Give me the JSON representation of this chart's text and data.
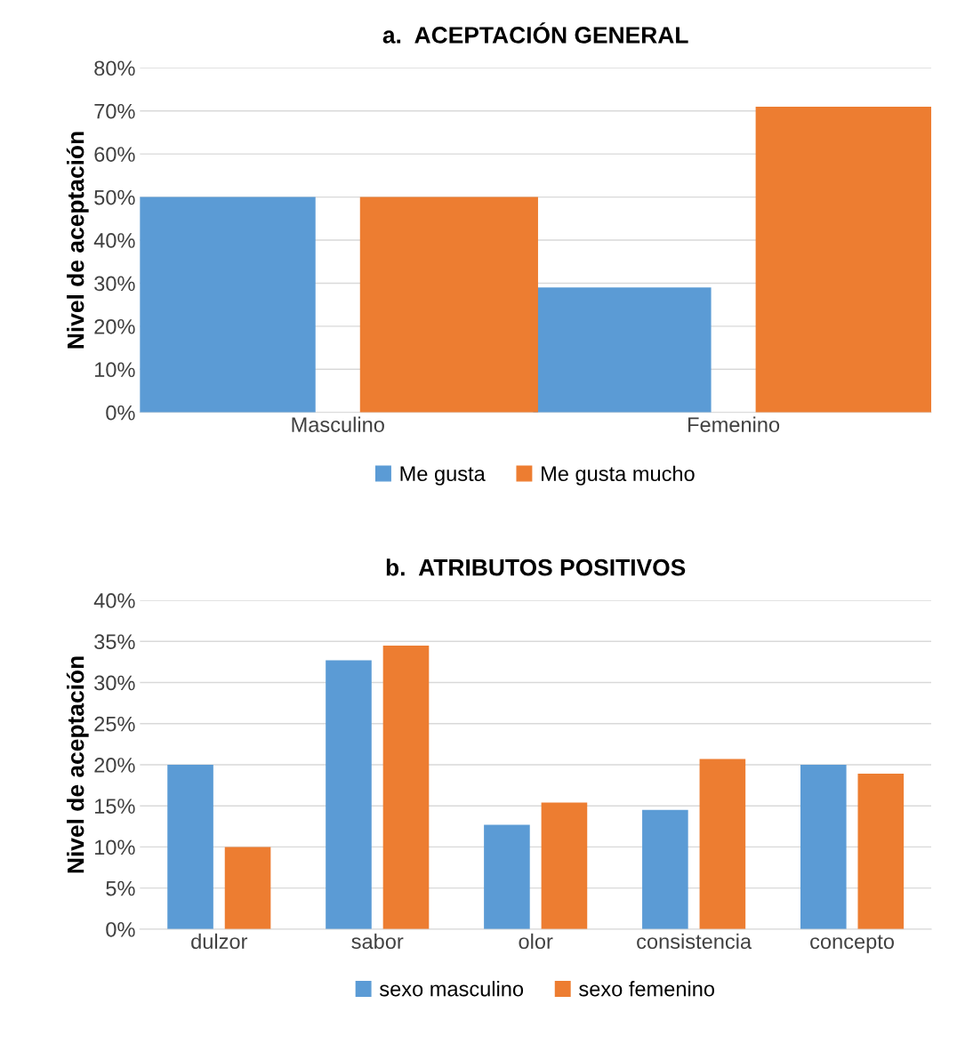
{
  "chart_data": [
    {
      "type": "bar",
      "title": "a.  ACEPTACIÓN GENERAL",
      "ylabel": "Nivel de aceptación",
      "categories": [
        "Masculino",
        "Femenino"
      ],
      "series": [
        {
          "name": "Me gusta",
          "color": "#5b9bd5",
          "values": [
            50,
            29
          ]
        },
        {
          "name": "Me gusta mucho",
          "color": "#ed7d31",
          "values": [
            50,
            71
          ]
        }
      ],
      "ylim": [
        0,
        80
      ],
      "yticks": [
        {
          "value": 0,
          "label": "0%"
        },
        {
          "value": 10,
          "label": "10%"
        },
        {
          "value": 20,
          "label": "20%"
        },
        {
          "value": 30,
          "label": "30%"
        },
        {
          "value": 40,
          "label": "40%"
        },
        {
          "value": 50,
          "label": "50%"
        },
        {
          "value": 60,
          "label": "60%"
        },
        {
          "value": 70,
          "label": "70%"
        },
        {
          "value": 80,
          "label": "80%"
        }
      ],
      "grid": "y",
      "legend": "bottom"
    },
    {
      "type": "bar",
      "title": "b.  ATRIBUTOS POSITIVOS",
      "ylabel": "Nivel de aceptación",
      "categories": [
        "dulzor",
        "sabor",
        "olor",
        "consistencia",
        "concepto"
      ],
      "series": [
        {
          "name": "sexo masculino",
          "color": "#5b9bd5",
          "values": [
            20,
            32.7,
            12.7,
            14.5,
            20
          ]
        },
        {
          "name": "sexo femenino",
          "color": "#ed7d31",
          "values": [
            10,
            34.5,
            15.4,
            20.7,
            18.9
          ]
        }
      ],
      "ylim": [
        0,
        40
      ],
      "yticks": [
        {
          "value": 0,
          "label": "0%"
        },
        {
          "value": 5,
          "label": "5%"
        },
        {
          "value": 10,
          "label": "10%"
        },
        {
          "value": 15,
          "label": "15%"
        },
        {
          "value": 20,
          "label": "20%"
        },
        {
          "value": 25,
          "label": "25%"
        },
        {
          "value": 30,
          "label": "30%"
        },
        {
          "value": 35,
          "label": "35%"
        },
        {
          "value": 40,
          "label": "40%"
        }
      ],
      "grid": "y",
      "legend": "bottom"
    }
  ]
}
